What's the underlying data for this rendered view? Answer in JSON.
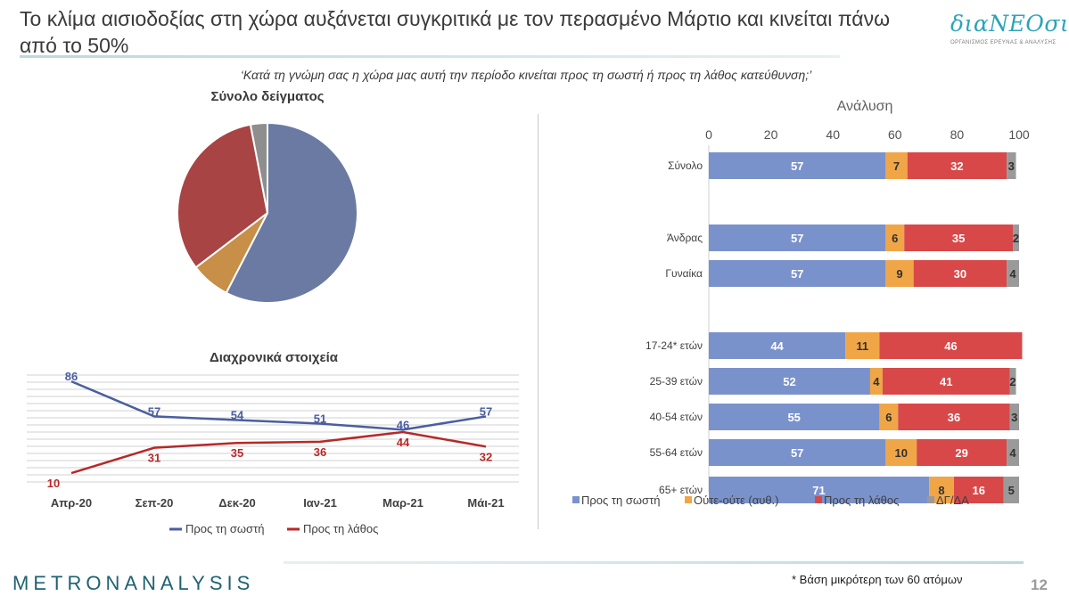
{
  "header": {
    "title": "Το κλίμα αισιοδοξίας στη χώρα αυξάνεται συγκριτικά με τον περασμένο Μάρτιο και κινείται πάνω από το 50%",
    "logo_text": "διαΝΕΟσις",
    "logo_subtitle": "ΟΡΓΑΝΙΣΜΟΣ ΕΡΕΥΝΑΣ & ΑΝΑΛΥΣΗΣ"
  },
  "question": "‘Κατά τη γνώμη σας η χώρα μας αυτή την περίοδο κινείται προς τη σωστή ή προς τη λάθος κατεύθυνση;’",
  "colors": {
    "correct": "#6a7aa2",
    "neither": "#c78f48",
    "wrong": "#a84444",
    "dk": "#8e8e8e",
    "bar_correct": "#7a92cc",
    "bar_neither": "#f0a646",
    "bar_wrong": "#d84848",
    "bar_dk": "#9a9a9a",
    "line_correct": "#4a5ea0",
    "line_wrong": "#b82828"
  },
  "chart_data": [
    {
      "type": "pie",
      "title": "Σύνολο δείγματος",
      "labels": [
        "Προς τη σωστή",
        "Ούτε-ούτε (αυθ.)",
        "Προς τη λάθος",
        "ΔΓ/ΔΑ"
      ],
      "values": [
        57,
        7,
        32,
        3
      ]
    },
    {
      "type": "line",
      "title": "Διαχρονικά στοιχεία",
      "x": [
        "Απρ-20",
        "Σεπ-20",
        "Δεκ-20",
        "Ιαν-21",
        "Μαρ-21",
        "Μάι-21"
      ],
      "series": [
        {
          "name": "Προς τη σωστή",
          "values": [
            86,
            57,
            54,
            51,
            46,
            57
          ]
        },
        {
          "name": "Προς τη λάθος",
          "values": [
            10,
            31,
            35,
            36,
            44,
            32
          ]
        }
      ]
    },
    {
      "type": "bar",
      "orientation": "horizontal",
      "stacked": true,
      "title": "Ανάλυση",
      "xlim": [
        0,
        100
      ],
      "xticks": [
        0,
        20,
        40,
        60,
        80,
        100
      ],
      "legend_position": "bottom",
      "categories": [
        "Σύνολο",
        "Άνδρας",
        "Γυναίκα",
        "17-24* ετών",
        "25-39 ετών",
        "40-54 ετών",
        "55-64 ετών",
        "65+ ετών"
      ],
      "series": [
        {
          "name": "Προς τη σωστή",
          "values": [
            57,
            57,
            57,
            44,
            52,
            55,
            57,
            71
          ]
        },
        {
          "name": "Ούτε-ούτε (αυθ.)",
          "values": [
            7,
            6,
            9,
            11,
            4,
            6,
            10,
            8
          ]
        },
        {
          "name": "Προς τη λάθος",
          "values": [
            32,
            35,
            30,
            46,
            41,
            36,
            29,
            16
          ]
        },
        {
          "name": "ΔΓ/ΔΑ",
          "values": [
            3,
            2,
            4,
            0,
            2,
            3,
            4,
            5
          ]
        }
      ]
    }
  ],
  "footer": {
    "brand": "METRONANALYSIS",
    "footnote": "* Βάση μικρότερη των 60 ατόμων",
    "page_number": "12"
  }
}
